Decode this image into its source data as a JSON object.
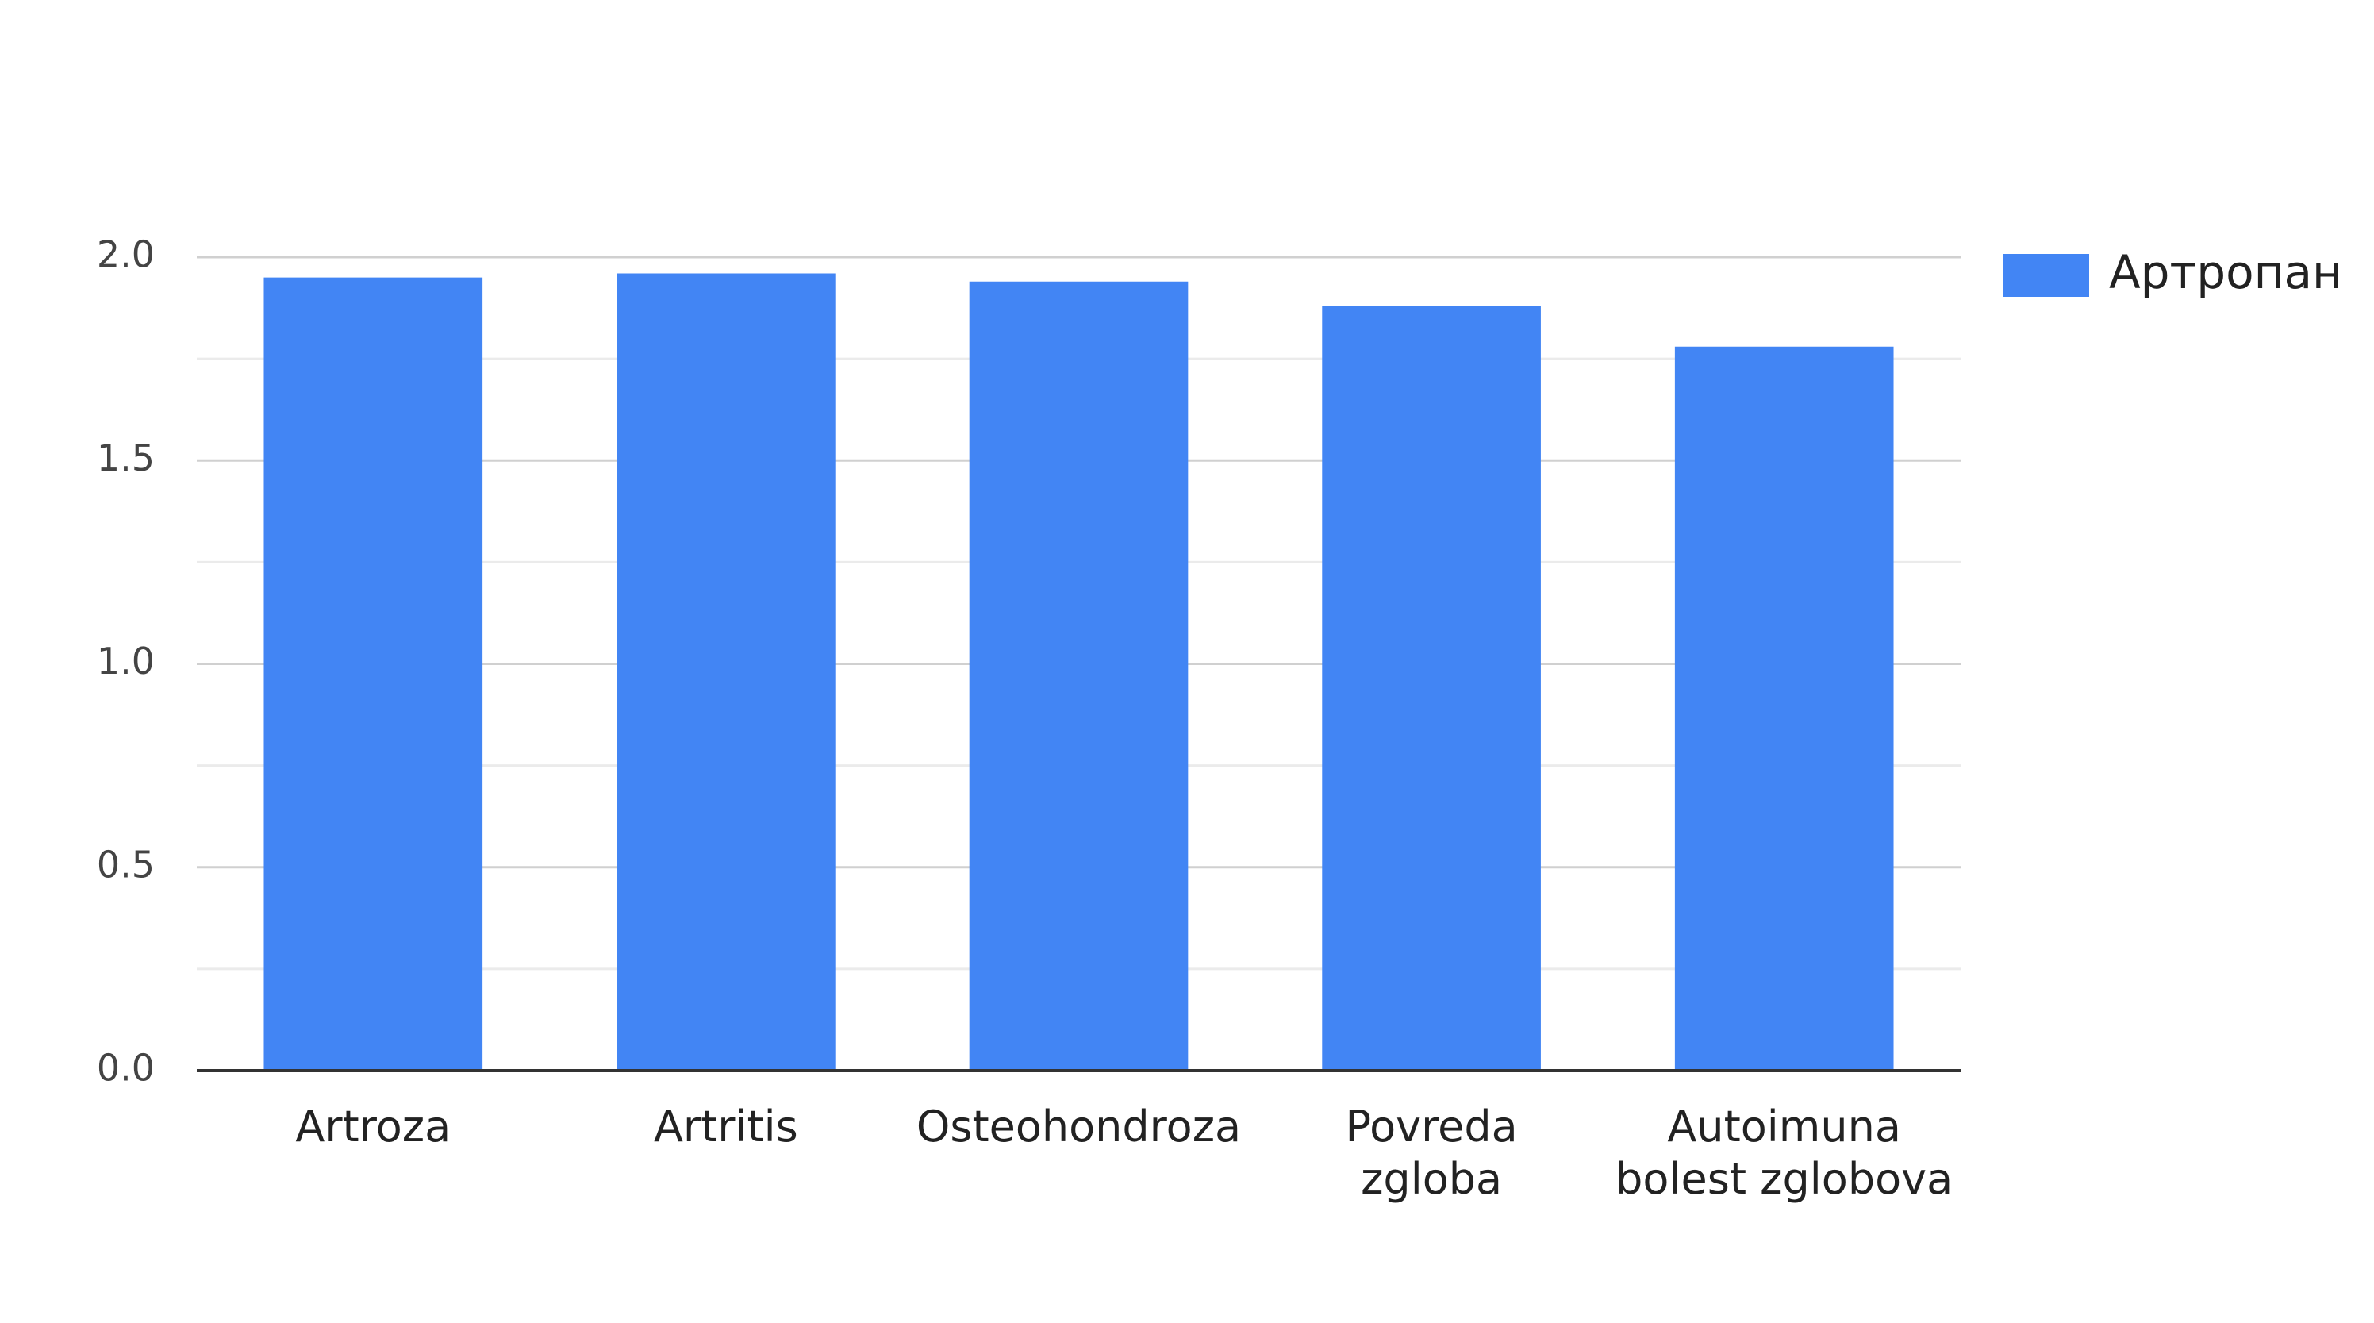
{
  "chart_data": {
    "type": "bar",
    "categories": [
      "Artroza",
      "Artritis",
      "Osteohondroza",
      "Povreda zgloba",
      "Autoimuna bolest zglobova"
    ],
    "series": [
      {
        "name": "Артропан",
        "color": "#4285f4",
        "values": [
          1.95,
          1.96,
          1.94,
          1.88,
          1.78
        ]
      }
    ],
    "ylim": [
      0,
      2
    ],
    "yticks": [
      {
        "value": 0,
        "label": "0.0"
      },
      {
        "value": 0.5,
        "label": "0.5"
      },
      {
        "value": 1,
        "label": "1.0"
      },
      {
        "value": 1.5,
        "label": "1.5"
      },
      {
        "value": 2,
        "label": "2.0"
      }
    ],
    "minor_yticks": [
      0.25,
      0.75,
      1.25,
      1.75
    ],
    "grid": true,
    "legend": "right"
  }
}
